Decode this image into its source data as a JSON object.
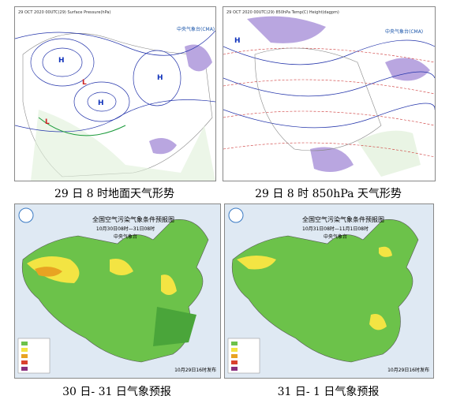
{
  "panels": [
    {
      "header": "29 OCT 2020 00UTC(29) Surface Pressure(hPa)",
      "logo": "中央气象台(CMA)",
      "caption": "29 日 8 时地面天气形势"
    },
    {
      "header": "29 OCT 2020 00UTC(29) 850hPa Temp(C) Height(dagpm)",
      "logo": "中央气象台(CMA)",
      "caption": "29 日 8 时 850hPa 天气形势"
    },
    {
      "title": "全国空气污染气象条件预报图",
      "time": "10月30日08时—31日08时",
      "agency": "中央气象台",
      "issued": "10月29日16时发布",
      "caption": "30 日- 31 日气象预报"
    },
    {
      "title": "全国空气污染气象条件预报图",
      "time": "10月31日08时—11月1日08时",
      "agency": "中央气象台",
      "issued": "10月29日16时发布",
      "caption": "31 日- 1 日气象预报"
    }
  ]
}
